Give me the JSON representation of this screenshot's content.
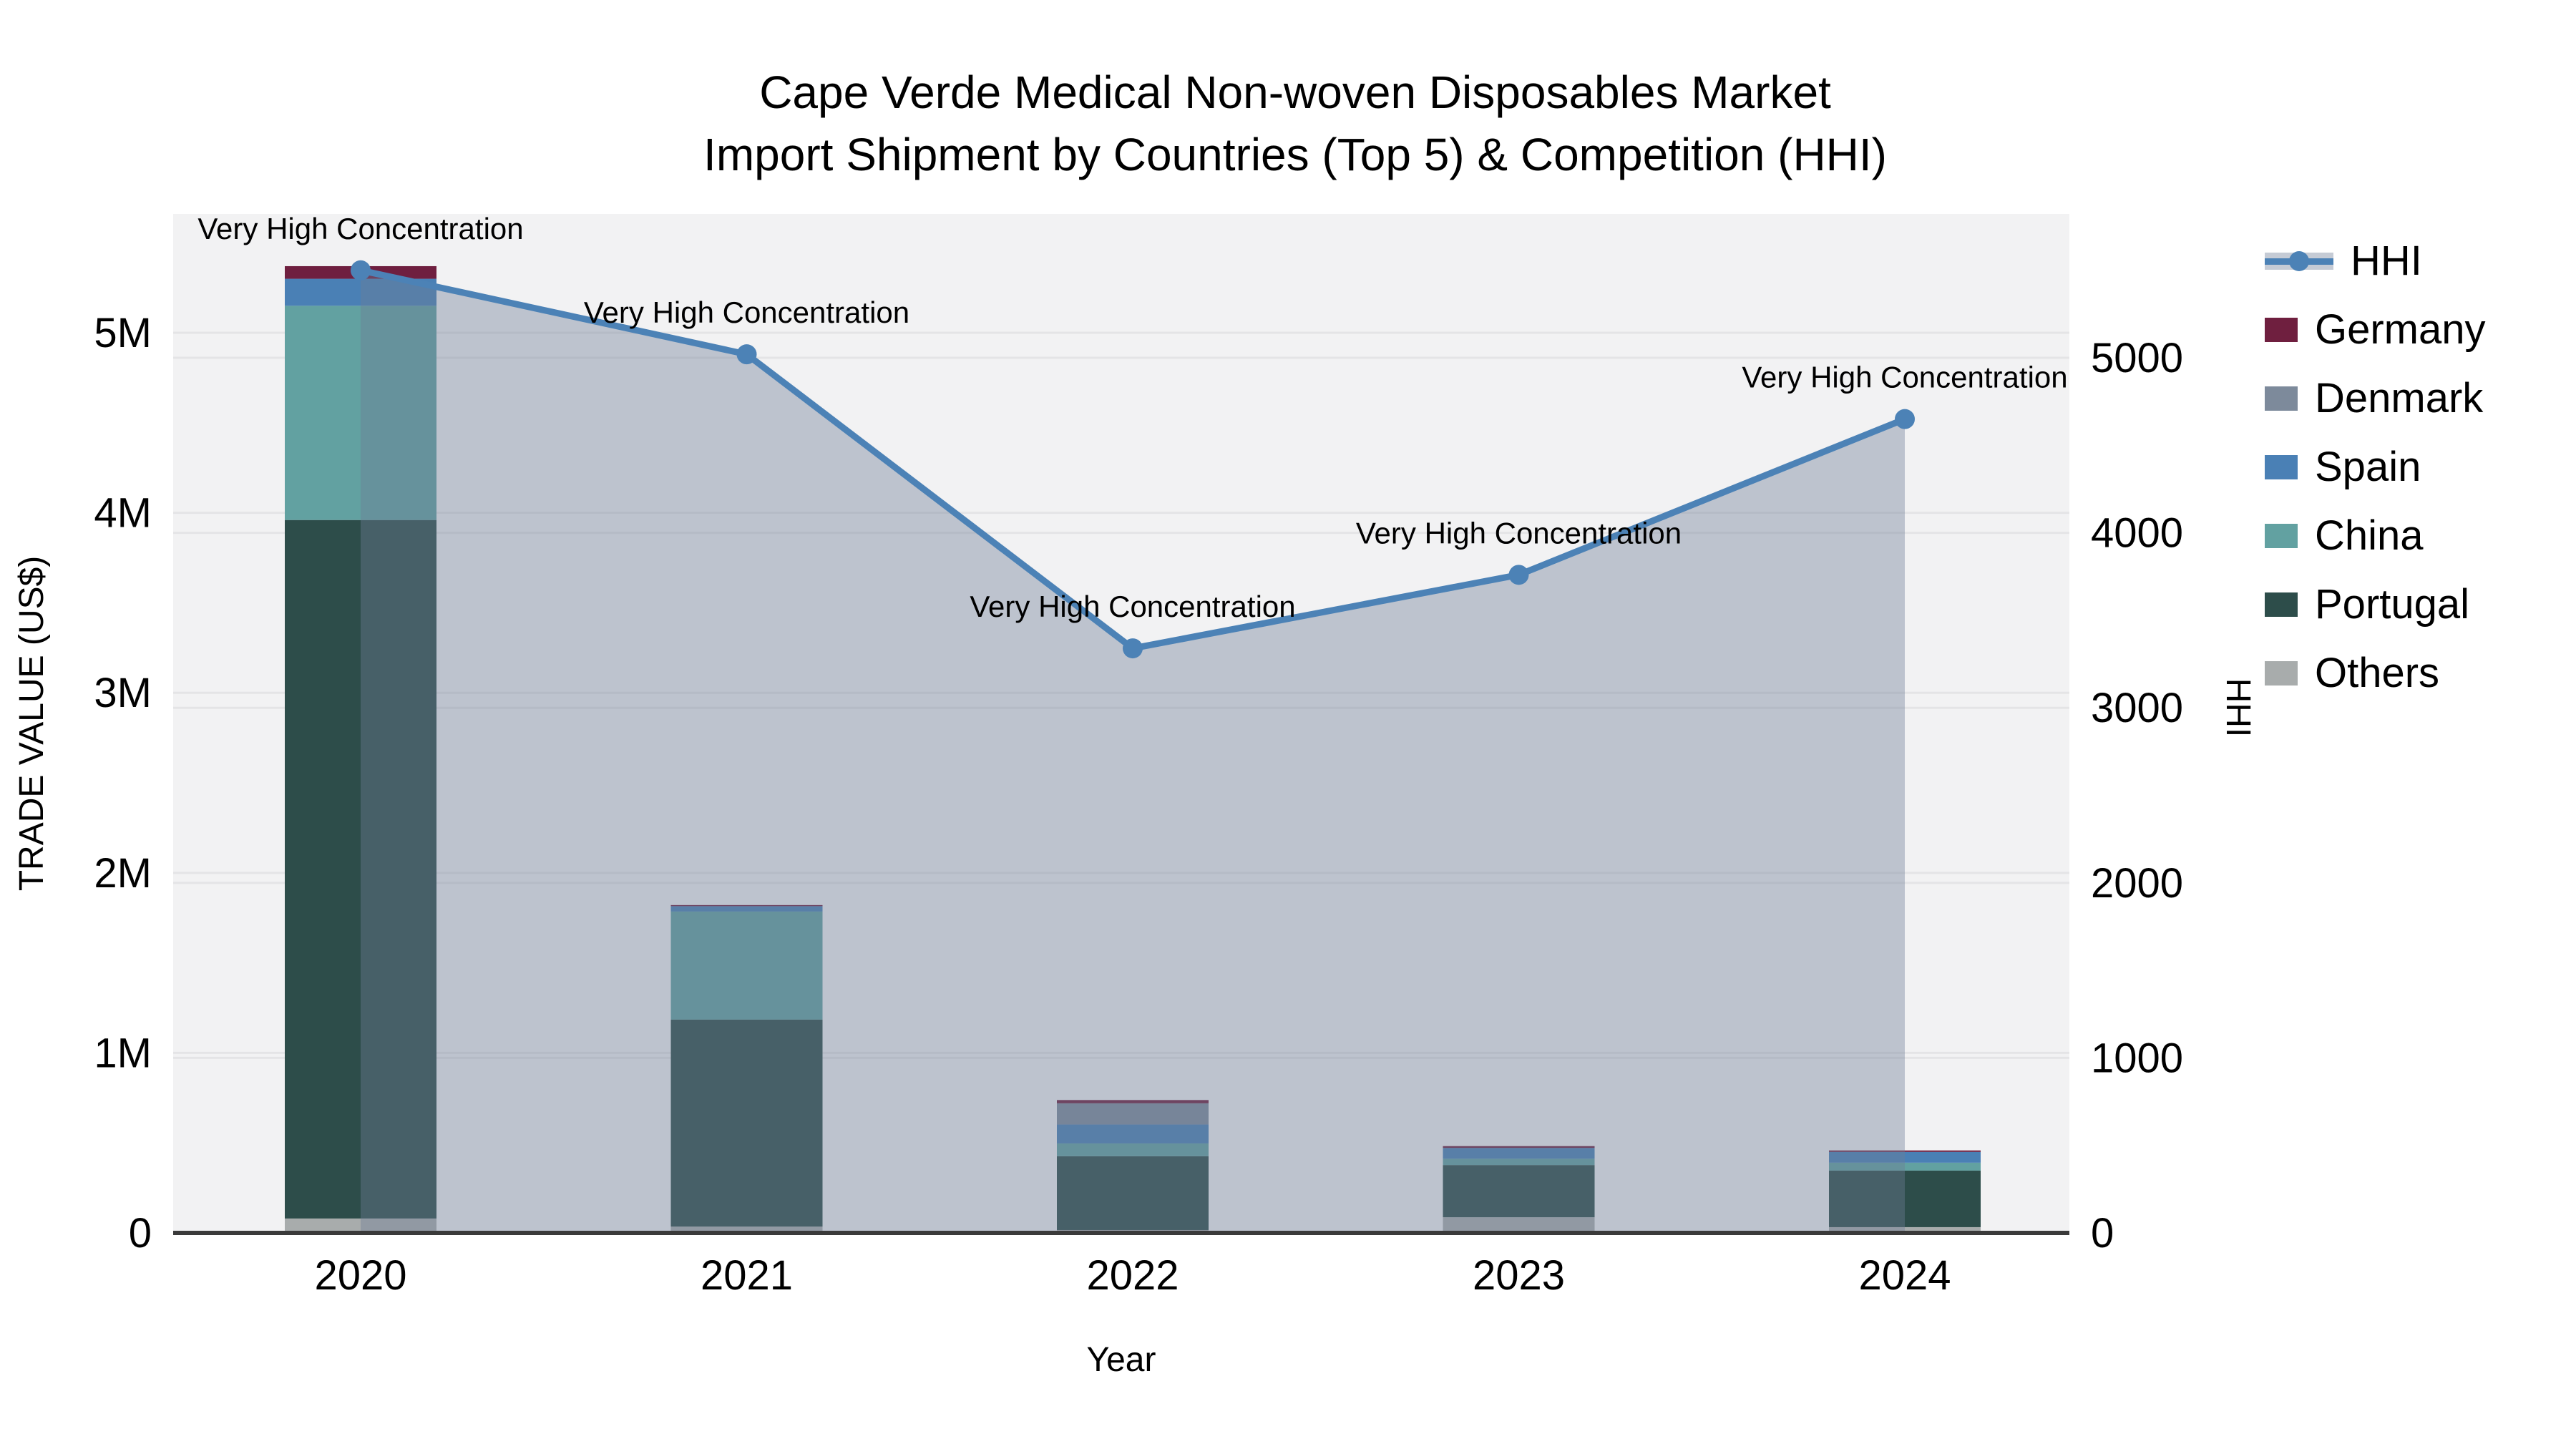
{
  "title": {
    "line1": "Cape Verde Medical Non-woven Disposables Market",
    "line2": "Import Shipment by Countries (Top 5) & Competition (HHI)"
  },
  "axes": {
    "x": {
      "label": "Year",
      "tick_labels": [
        "2020",
        "2021",
        "2022",
        "2023",
        "2024"
      ]
    },
    "y_left": {
      "label": "TRADE VALUE (US$)",
      "tick_labels": [
        "0",
        "1M",
        "2M",
        "3M",
        "4M",
        "5M"
      ]
    },
    "y_right": {
      "label": "HHI",
      "tick_labels": [
        "0",
        "1000",
        "2000",
        "3000",
        "4000",
        "5000"
      ]
    }
  },
  "legend": {
    "items": [
      {
        "label": "HHI",
        "type": "line",
        "color": "#4c82b6"
      },
      {
        "label": "Germany",
        "type": "box",
        "color": "#6f1f3f"
      },
      {
        "label": "Denmark",
        "type": "box",
        "color": "#7d8a9b"
      },
      {
        "label": "Spain",
        "type": "box",
        "color": "#4a80b5"
      },
      {
        "label": "China",
        "type": "box",
        "color": "#62a1a1"
      },
      {
        "label": "Portugal",
        "type": "box",
        "color": "#2d4d4a"
      },
      {
        "label": "Others",
        "type": "box",
        "color": "#a8acac"
      }
    ]
  },
  "chart_data": {
    "type": "bar",
    "stacked": true,
    "title": "Cape Verde Medical Non-woven Disposables Market — Import Shipment by Countries (Top 5) & Competition (HHI)",
    "categories": [
      "2020",
      "2021",
      "2022",
      "2023",
      "2024"
    ],
    "series": [
      {
        "name": "Others",
        "color": "#a8acac",
        "values": [
          80000,
          35000,
          16000,
          87000,
          32000
        ]
      },
      {
        "name": "Portugal",
        "color": "#2d4d4a",
        "values": [
          3880000,
          1150000,
          410000,
          290000,
          314000
        ]
      },
      {
        "name": "China",
        "color": "#62a1a1",
        "values": [
          1190000,
          600000,
          71000,
          35000,
          44000
        ]
      },
      {
        "name": "Spain",
        "color": "#4a80b5",
        "values": [
          150000,
          30000,
          105000,
          60000,
          60000
        ]
      },
      {
        "name": "Denmark",
        "color": "#7d8a9b",
        "values": [
          0,
          0,
          118000,
          0,
          0
        ]
      },
      {
        "name": "Germany",
        "color": "#6f1f3f",
        "values": [
          70000,
          6000,
          18000,
          10000,
          8000
        ]
      }
    ],
    "line": {
      "name": "HHI",
      "yaxis": "right",
      "color": "#4c82b6",
      "area_fill": "rgba(110,125,150,0.4)",
      "values": [
        5500,
        5020,
        3340,
        3760,
        4650
      ],
      "point_annotations": [
        "Very High Concentration",
        "Very High Concentration",
        "Very High Concentration",
        "Very High Concentration",
        "Very High Concentration"
      ]
    },
    "xlabel": "Year",
    "ylabel_left": "TRADE VALUE (US$)",
    "ylabel_right": "HHI",
    "ylim_left": [
      0,
      5660000
    ],
    "ylim_right": [
      0,
      5822
    ],
    "yticks_left": {
      "values": [
        0,
        1000000,
        2000000,
        3000000,
        4000000,
        5000000
      ],
      "labels": [
        "0",
        "1M",
        "2M",
        "3M",
        "4M",
        "5M"
      ]
    },
    "yticks_right": {
      "values": [
        0,
        1000,
        2000,
        3000,
        4000,
        5000
      ],
      "labels": [
        "0",
        "1000",
        "2000",
        "3000",
        "4000",
        "5000"
      ]
    },
    "grid": true,
    "legend_position": "right"
  },
  "colors": {
    "outer_background": "#ffffff",
    "plot_background": "#f2f2f3",
    "gridline": "#e4e4e6",
    "axis_spine": "#3a3a3a",
    "text": "#000000",
    "hhi_line": "#4c82b6",
    "hhi_area": "rgba(110,125,150,0.4)"
  }
}
